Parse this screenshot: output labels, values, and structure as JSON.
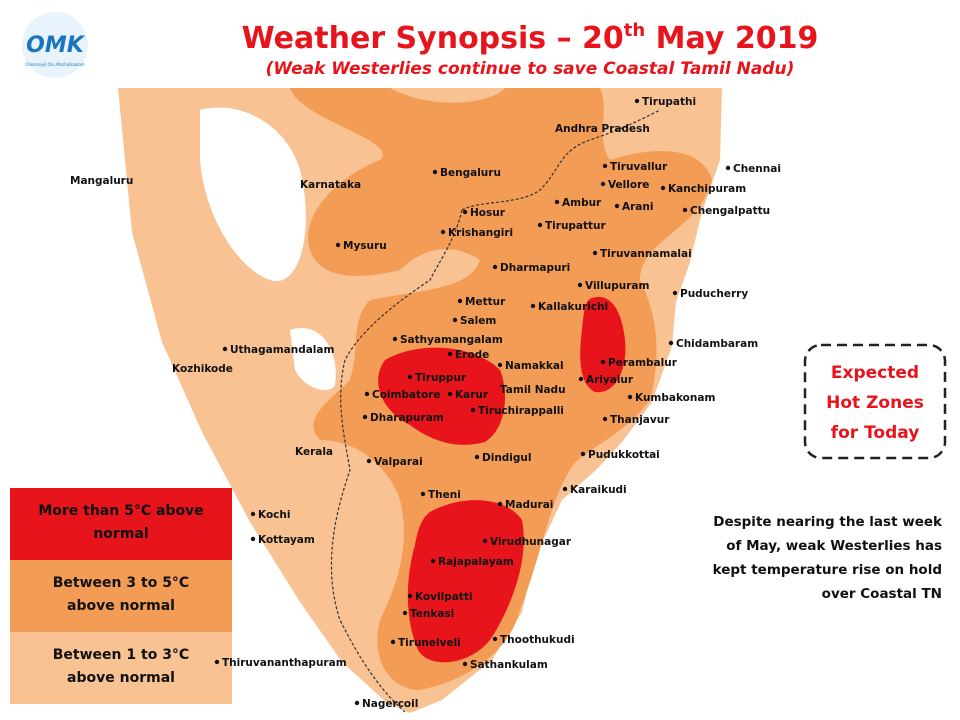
{
  "header": {
    "logo_text": "OMK",
    "logo_tagline": "Chennaiyil Oru Mazhaikaalam",
    "title": "Weather Synopsis – 20",
    "title_sup": "th",
    "title_end": " May 2019",
    "subtitle": "(Weak Westerlies continue to save Coastal Tamil Nadu)"
  },
  "legend": [
    {
      "label_lines": [
        "More than 5°C above",
        "normal"
      ]
    },
    {
      "label_lines": [
        "Between 3 to 5°C",
        "above normal"
      ]
    },
    {
      "label_lines": [
        "Between 1 to 3°C",
        "above normal"
      ]
    }
  ],
  "callout": {
    "lines": [
      "Expected",
      "Hot Zones",
      "for Today"
    ]
  },
  "note": {
    "lines": [
      "Despite nearing the last week",
      "of May, weak Westerlies has",
      "kept temperature rise on hold",
      "over Coastal TN"
    ]
  },
  "places": [
    "Tirupathi",
    "Andhra Pradesh",
    "Bengaluru",
    "Karnataka",
    "Mangaluru",
    "Chennai",
    "Tiruvallur",
    "Vellore",
    "Kanchipuram",
    "Ambur",
    "Arani",
    "Chengalpattu",
    "Hosur",
    "Krishangiri",
    "Tirupattur",
    "Mysuru",
    "Tiruvannamalai",
    "Dharmapuri",
    "Villupuram",
    "Puducherry",
    "Mettur",
    "Kallakurichi",
    "Salem",
    "Sathyamangalam",
    "Chidambaram",
    "Uthagamandalam",
    "Erode",
    "Namakkal",
    "Perambalur",
    "Kozhikode",
    "Tiruppur",
    "Tamil Nadu",
    "Ariyalur",
    "Coimbatore",
    "Karur",
    "Kumbakonam",
    "Tiruchirappalli",
    "Dharapuram",
    "Thanjavur",
    "Kerala",
    "Valparai",
    "Dindigul",
    "Pudukkottai",
    "Theni",
    "Karaikudi",
    "Madurai",
    "Kochi",
    "Kottayam",
    "Virudhunagar",
    "Rajapalayam",
    "Kovilpatti",
    "Tenkasi",
    "Thoothukudi",
    "Tirunelveli",
    "Thiruvananthapuram",
    "Sathankulam",
    "Nagercoil"
  ]
}
